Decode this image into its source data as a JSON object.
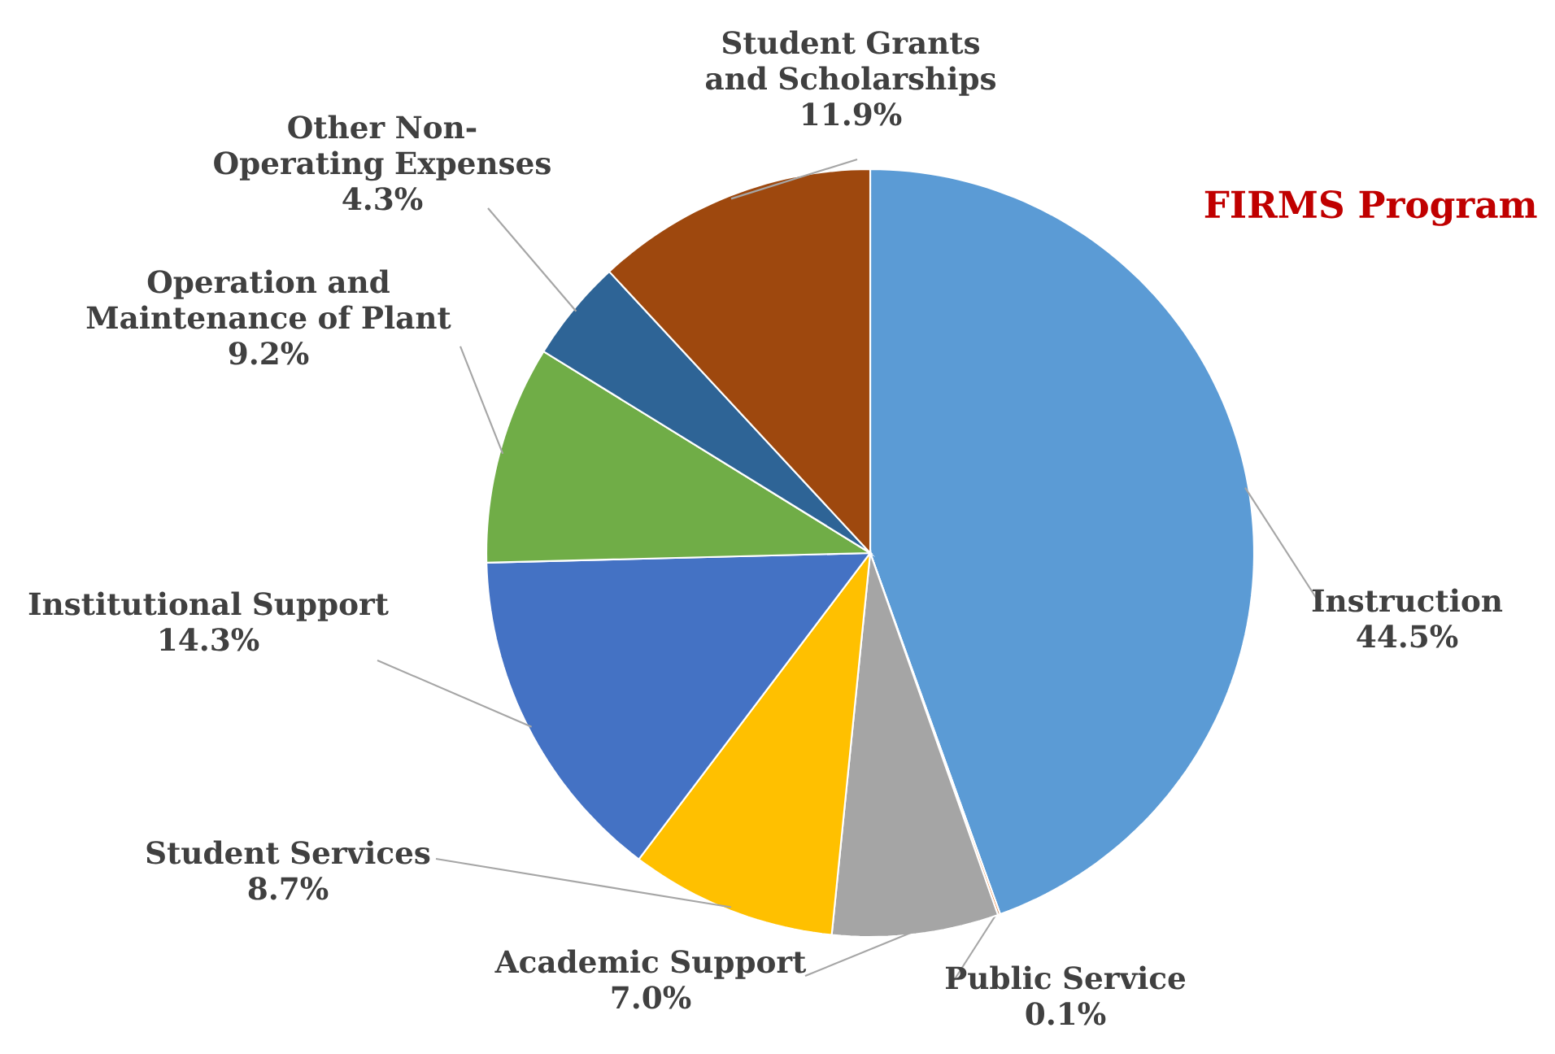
{
  "chart_data": {
    "type": "pie",
    "title": "FIRMS Program",
    "categories": [
      "Instruction",
      "Public Service",
      "Academic Support",
      "Student Services",
      "Institutional Support",
      "Operation and Maintenance of Plant",
      "Other Non-Operating Expenses",
      "Student Grants and Scholarships"
    ],
    "values": [
      44.5,
      0.1,
      7.0,
      8.7,
      14.3,
      9.2,
      4.3,
      11.9
    ],
    "value_labels": [
      "44.5%",
      "0.1%",
      "7.0%",
      "8.7%",
      "14.3%",
      "9.2%",
      "4.3%",
      "11.9%"
    ],
    "colors": [
      "#5b9bd5",
      "#ed7d31",
      "#a5a5a5",
      "#ffc000",
      "#4472c4",
      "#70ad47",
      "#2e6496",
      "#9e480e"
    ]
  }
}
